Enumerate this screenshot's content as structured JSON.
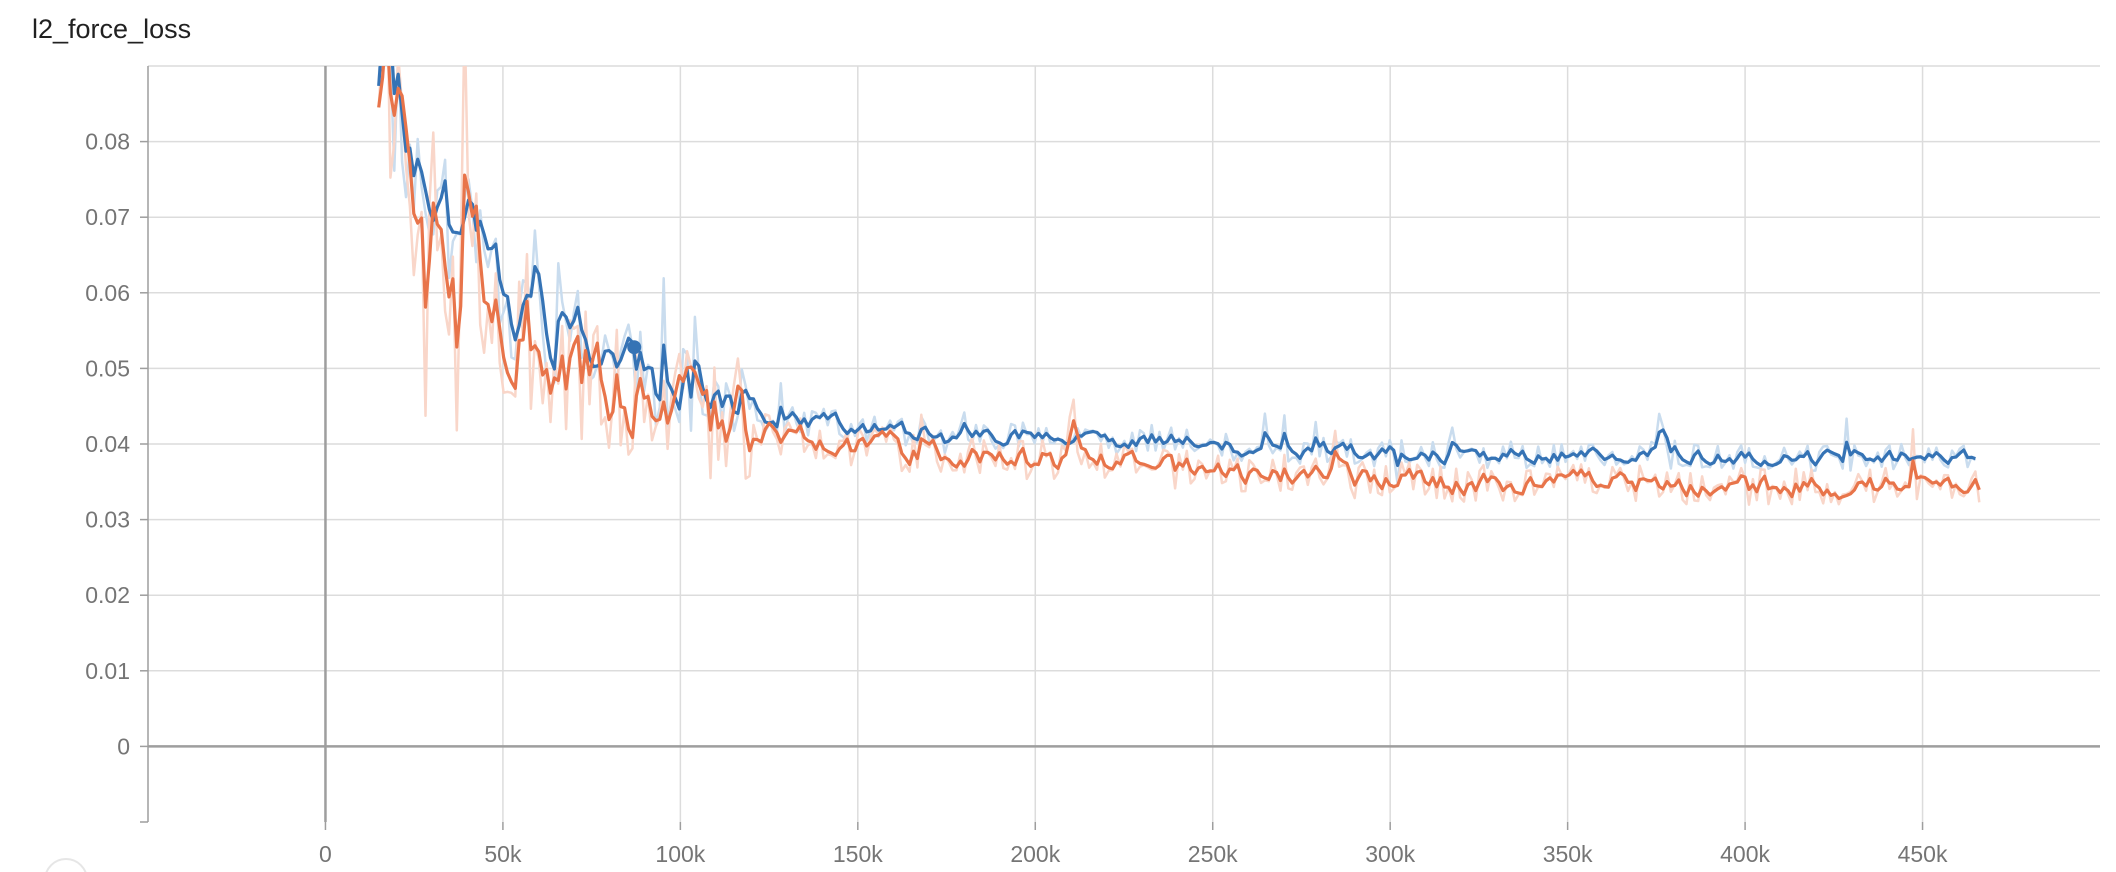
{
  "chart_data": {
    "type": "line",
    "title": "l2_force_loss",
    "xlabel": "",
    "ylabel": "",
    "xlim": [
      -50000,
      500000
    ],
    "ylim": [
      -0.01,
      0.09
    ],
    "grid": true,
    "legend": "none",
    "x_ticks": [
      0,
      50000,
      100000,
      150000,
      200000,
      250000,
      300000,
      350000,
      400000,
      450000
    ],
    "x_tick_labels": [
      "0",
      "50k",
      "100k",
      "150k",
      "200k",
      "250k",
      "300k",
      "350k",
      "400k",
      "450k"
    ],
    "y_ticks": [
      0,
      0.01,
      0.02,
      0.03,
      0.04,
      0.05,
      0.06,
      0.07,
      0.08
    ],
    "y_tick_labels": [
      "0",
      "0.01",
      "0.02",
      "0.03",
      "0.04",
      "0.05",
      "0.06",
      "0.07",
      "0.08"
    ],
    "highlight_point": {
      "x": 87000,
      "y": 0.0528,
      "color": "#3573b5"
    },
    "series": [
      {
        "color": "#3573b5",
        "raw_color": "#c9dcee",
        "x": [
          15000,
          20000,
          25000,
          30000,
          35000,
          40000,
          45000,
          50000,
          55000,
          60000,
          65000,
          70000,
          75000,
          80000,
          85000,
          90000,
          95000,
          100000,
          110000,
          120000,
          130000,
          140000,
          150000,
          160000,
          170000,
          180000,
          190000,
          200000,
          210000,
          220000,
          230000,
          240000,
          250000,
          260000,
          270000,
          280000,
          290000,
          300000,
          320000,
          340000,
          360000,
          380000,
          400000,
          420000,
          440000,
          460000,
          465000
        ],
        "y": [
          0.095,
          0.085,
          0.078,
          0.074,
          0.07,
          0.067,
          0.062,
          0.059,
          0.057,
          0.055,
          0.054,
          0.057,
          0.052,
          0.054,
          0.05,
          0.049,
          0.047,
          0.047,
          0.045,
          0.044,
          0.043,
          0.043,
          0.0425,
          0.042,
          0.0415,
          0.041,
          0.041,
          0.041,
          0.0405,
          0.04,
          0.0405,
          0.041,
          0.04,
          0.0395,
          0.0392,
          0.039,
          0.0388,
          0.0388,
          0.0387,
          0.0386,
          0.0385,
          0.0386,
          0.0383,
          0.0382,
          0.0382,
          0.0381,
          0.038
        ]
      },
      {
        "color": "#e8744a",
        "raw_color": "#f9d6c9",
        "x": [
          15000,
          20000,
          25000,
          30000,
          35000,
          40000,
          45000,
          50000,
          55000,
          60000,
          65000,
          70000,
          75000,
          80000,
          85000,
          90000,
          95000,
          100000,
          110000,
          120000,
          130000,
          140000,
          150000,
          160000,
          170000,
          180000,
          190000,
          200000,
          210000,
          220000,
          230000,
          240000,
          250000,
          260000,
          270000,
          280000,
          290000,
          300000,
          320000,
          340000,
          360000,
          380000,
          400000,
          420000,
          440000,
          460000,
          465000,
          467000
        ],
        "y": [
          0.094,
          0.082,
          0.075,
          0.07,
          0.066,
          0.064,
          0.06,
          0.057,
          0.055,
          0.053,
          0.052,
          0.051,
          0.05,
          0.049,
          0.048,
          0.047,
          0.046,
          0.045,
          0.044,
          0.0425,
          0.041,
          0.0405,
          0.04,
          0.0395,
          0.039,
          0.0385,
          0.038,
          0.0378,
          0.0376,
          0.0374,
          0.0372,
          0.0368,
          0.0365,
          0.0362,
          0.036,
          0.0358,
          0.0355,
          0.0353,
          0.035,
          0.0348,
          0.0347,
          0.0346,
          0.0345,
          0.0345,
          0.0344,
          0.0348,
          0.036,
          0.033
        ]
      }
    ]
  }
}
